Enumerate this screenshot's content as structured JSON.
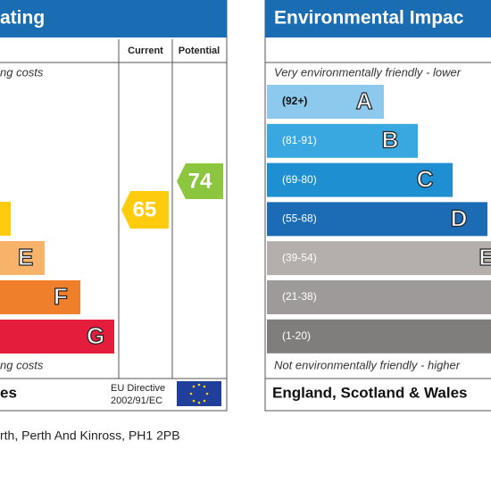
{
  "energy": {
    "title": "ating",
    "top_note": "ng costs",
    "columns": [
      "Current",
      "Potential"
    ],
    "bands": [
      "E",
      "F",
      "G"
    ],
    "current": "65",
    "potential": "74",
    "bottom_note": "ng costs",
    "footer": "es",
    "directive": [
      "EU Directive",
      "2002/91/EC"
    ]
  },
  "environmental": {
    "title": "Environmental Impac",
    "top_note": "Very environmentally friendly - lower",
    "bands": [
      {
        "range": "(92+)",
        "letter": "A"
      },
      {
        "range": "(81-91)",
        "letter": "B"
      },
      {
        "range": "(69-80)",
        "letter": "C"
      },
      {
        "range": "(55-68)",
        "letter": "D"
      },
      {
        "range": "(39-54)",
        "letter": "E"
      },
      {
        "range": "(21-38)",
        "letter": ""
      },
      {
        "range": "(1-20)",
        "letter": ""
      }
    ],
    "bottom_note": "Not environmentally friendly - higher",
    "footer": "England, Scotland & Wales"
  },
  "address": "rth, Perth And Kinross, PH1 2PB"
}
